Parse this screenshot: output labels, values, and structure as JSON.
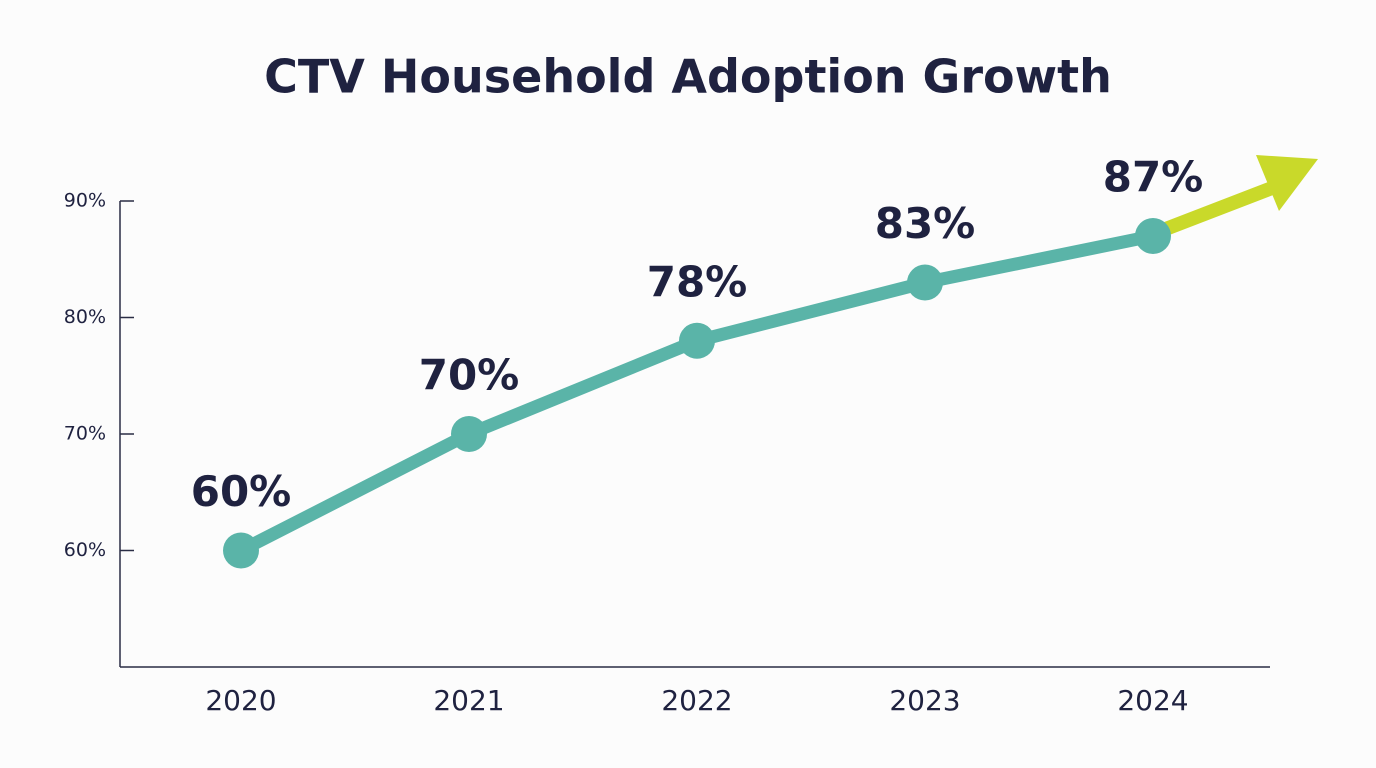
{
  "chart_data": {
    "type": "line",
    "title": "CTV Household Adoption Growth",
    "categories": [
      "2020",
      "2021",
      "2022",
      "2023",
      "2024"
    ],
    "values": [
      60,
      70,
      78,
      83,
      87
    ],
    "value_labels": [
      "60%",
      "70%",
      "78%",
      "83%",
      "87%"
    ],
    "color": "#5ab4a8",
    "ylim": [
      50,
      90
    ],
    "yticks": [
      {
        "value": 60,
        "label": "60%"
      },
      {
        "value": 70,
        "label": "70%"
      },
      {
        "value": 80,
        "label": "80%"
      },
      {
        "value": 90,
        "label": "90%"
      }
    ]
  }
}
